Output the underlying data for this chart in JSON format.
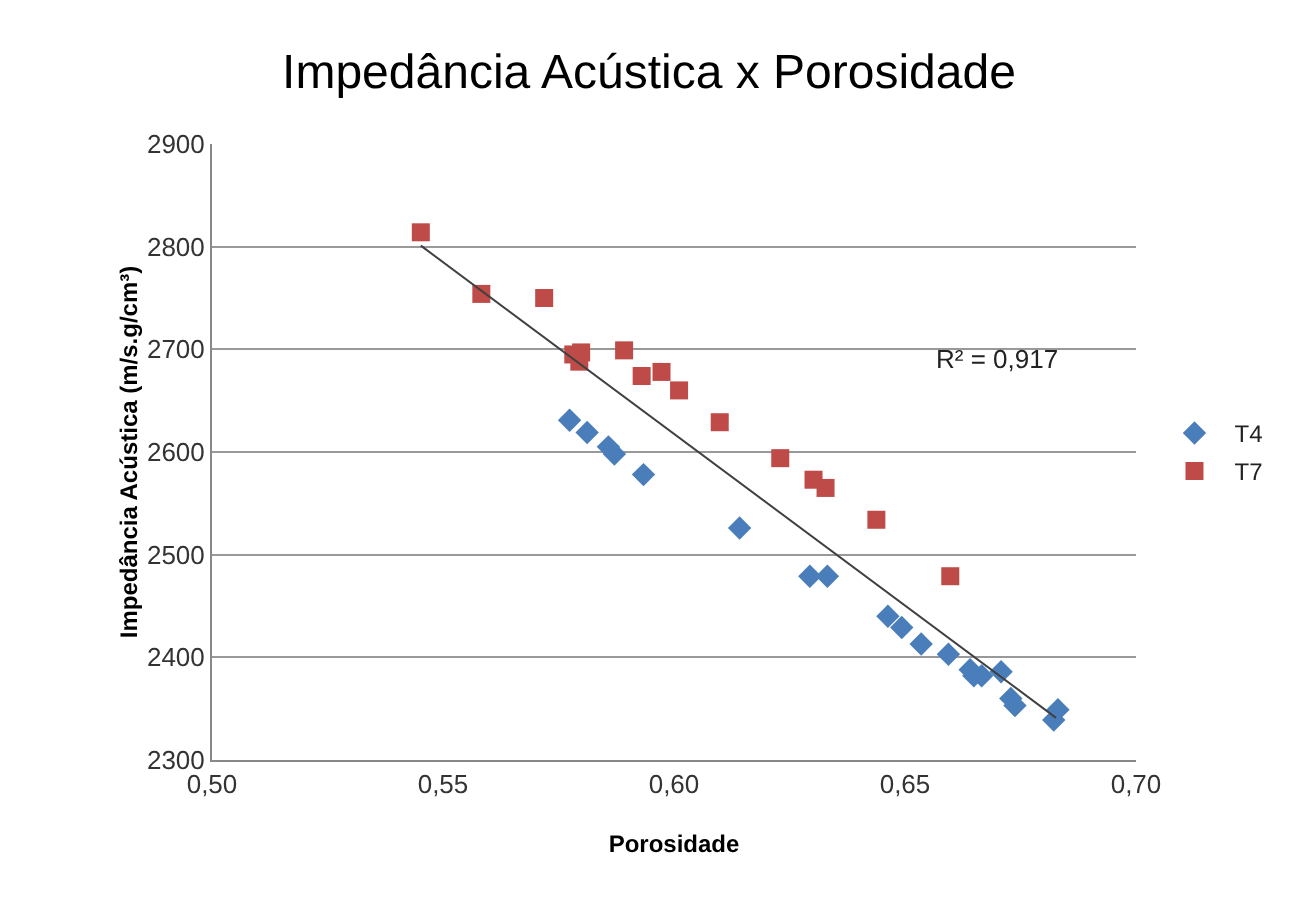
{
  "chart_data": {
    "type": "scatter",
    "title": "Impedância Acústica x Porosidade",
    "xlabel": "Porosidade",
    "ylabel": "Impedância Acústica (m/s.g/cm³)",
    "xlim": [
      0.5,
      0.7
    ],
    "xticks": [
      {
        "value": 0.5,
        "label": "0,50"
      },
      {
        "value": 0.55,
        "label": "0,55"
      },
      {
        "value": 0.6,
        "label": "0,60"
      },
      {
        "value": 0.65,
        "label": "0,65"
      },
      {
        "value": 0.7,
        "label": "0,70"
      }
    ],
    "ylim": [
      2300,
      2900
    ],
    "yticks": [
      2300,
      2400,
      2500,
      2600,
      2700,
      2800,
      2900
    ],
    "grid": "y",
    "legend": "right",
    "annotations": [
      "R² = 0,917"
    ],
    "series": [
      {
        "name": "T4",
        "color": "#4a7ebb",
        "marker": "diamond",
        "x": [
          0.5774,
          0.5812,
          0.5858,
          0.5871,
          0.5934,
          0.6142,
          0.6294,
          0.6332,
          0.6463,
          0.6493,
          0.6535,
          0.6594,
          0.6641,
          0.6649,
          0.6666,
          0.6708,
          0.6729,
          0.6738,
          0.6831,
          0.6822
        ],
        "values": [
          2631,
          2619,
          2605,
          2598,
          2578,
          2526,
          2479,
          2479,
          2440,
          2429,
          2413,
          2403,
          2388,
          2382,
          2382,
          2386,
          2360,
          2353,
          2349,
          2339
        ]
      },
      {
        "name": "T7",
        "color": "#be4b48",
        "marker": "square",
        "x": [
          0.5452,
          0.5583,
          0.5719,
          0.5782,
          0.5799,
          0.5795,
          0.5892,
          0.593,
          0.5973,
          0.6011,
          0.6099,
          0.623,
          0.6302,
          0.6328,
          0.6438,
          0.6598
        ],
        "values": [
          2814,
          2754,
          2750,
          2695,
          2697,
          2688,
          2699,
          2674,
          2678,
          2660,
          2629,
          2594,
          2573,
          2565,
          2534,
          2479
        ]
      },
      {
        "type": "line",
        "color": "#404040",
        "marker": "none",
        "x": [
          0.5452,
          0.6827
        ],
        "values": [
          2801,
          2341
        ]
      }
    ]
  }
}
